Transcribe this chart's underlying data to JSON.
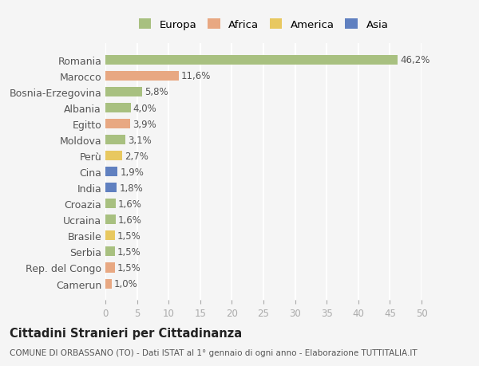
{
  "categories": [
    "Romania",
    "Marocco",
    "Bosnia-Erzegovina",
    "Albania",
    "Egitto",
    "Moldova",
    "Perù",
    "Cina",
    "India",
    "Croazia",
    "Ucraina",
    "Brasile",
    "Serbia",
    "Rep. del Congo",
    "Camerun"
  ],
  "values": [
    46.2,
    11.6,
    5.8,
    4.0,
    3.9,
    3.1,
    2.7,
    1.9,
    1.8,
    1.6,
    1.6,
    1.5,
    1.5,
    1.5,
    1.0
  ],
  "labels": [
    "46,2%",
    "11,6%",
    "5,8%",
    "4,0%",
    "3,9%",
    "3,1%",
    "2,7%",
    "1,9%",
    "1,8%",
    "1,6%",
    "1,6%",
    "1,5%",
    "1,5%",
    "1,5%",
    "1,0%"
  ],
  "colors": [
    "#a8c080",
    "#e8a882",
    "#a8c080",
    "#a8c080",
    "#e8a882",
    "#a8c080",
    "#e8c860",
    "#6080c0",
    "#6080c0",
    "#a8c080",
    "#a8c080",
    "#e8c860",
    "#a8c080",
    "#e8a882",
    "#e8a882"
  ],
  "legend_labels": [
    "Europa",
    "Africa",
    "America",
    "Asia"
  ],
  "legend_colors": [
    "#a8c080",
    "#e8a882",
    "#e8c860",
    "#6080c0"
  ],
  "title": "Cittadini Stranieri per Cittadinanza",
  "subtitle": "COMUNE DI ORBASSANO (TO) - Dati ISTAT al 1° gennaio di ogni anno - Elaborazione TUTTITALIA.IT",
  "xlim": [
    0,
    50
  ],
  "xticks": [
    0,
    5,
    10,
    15,
    20,
    25,
    30,
    35,
    40,
    45,
    50
  ],
  "bg_color": "#f5f5f5",
  "grid_color": "#ffffff"
}
